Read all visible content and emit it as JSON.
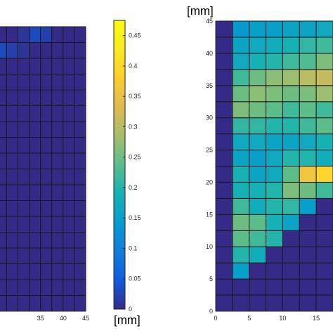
{
  "chart_data": [
    {
      "type": "heatmap",
      "title": "",
      "xlabel": "",
      "ylabel": "",
      "xlim": [
        22,
        45
      ],
      "ylim": [
        0,
        45
      ],
      "x_ticks": [
        35,
        40,
        45
      ],
      "x_tick_labels": [
        "35",
        "40",
        "45"
      ],
      "cell_size": 2.5,
      "grid": true,
      "x_start": 22.5,
      "y_start": 0,
      "values": [
        [
          0.0,
          0.0,
          0.0,
          0.0,
          0.0,
          0.0,
          0.0,
          0.0,
          0.0
        ],
        [
          0.0,
          0.0,
          0.0,
          0.0,
          0.0,
          0.0,
          0.0,
          0.0,
          0.0
        ],
        [
          0.0,
          0.0,
          0.0,
          0.0,
          0.0,
          0.0,
          0.0,
          0.0,
          0.0
        ],
        [
          0.0,
          0.0,
          0.0,
          0.0,
          0.0,
          0.0,
          0.0,
          0.0,
          0.0
        ],
        [
          0.0,
          0.0,
          0.0,
          0.0,
          0.0,
          0.0,
          0.0,
          0.0,
          0.0
        ],
        [
          0.0,
          0.0,
          0.0,
          0.0,
          0.0,
          0.0,
          0.0,
          0.0,
          0.0
        ],
        [
          0.0,
          0.0,
          0.0,
          0.0,
          0.0,
          0.0,
          0.0,
          0.0,
          0.0
        ],
        [
          0.0,
          0.0,
          0.0,
          0.0,
          0.0,
          0.0,
          0.0,
          0.0,
          0.0
        ],
        [
          0.0,
          0.0,
          0.0,
          0.0,
          0.0,
          0.0,
          0.0,
          0.0,
          0.0
        ],
        [
          0.0,
          0.0,
          0.0,
          0.0,
          0.0,
          0.0,
          0.0,
          0.0,
          0.0
        ],
        [
          0.0,
          0.0,
          0.0,
          0.0,
          0.0,
          0.0,
          0.0,
          0.0,
          0.0
        ],
        [
          0.0,
          0.0,
          0.0,
          0.0,
          0.0,
          0.0,
          0.0,
          0.0,
          0.0
        ],
        [
          0.0,
          0.0,
          0.0,
          0.0,
          0.0,
          0.0,
          0.0,
          0.0,
          0.0
        ],
        [
          0.0,
          0.0,
          0.0,
          0.0,
          0.0,
          0.0,
          0.0,
          0.0,
          0.0
        ],
        [
          0.0,
          0.0,
          0.0,
          0.0,
          0.0,
          0.0,
          0.0,
          0.0,
          0.0
        ],
        [
          0.02,
          0.0,
          0.0,
          0.0,
          0.0,
          0.0,
          0.0,
          0.0,
          0.0
        ],
        [
          0.01,
          0.03,
          0.02,
          0.01,
          0.0,
          0.0,
          0.0,
          0.0,
          0.0
        ],
        [
          0.0,
          0.0,
          0.0,
          0.01,
          0.03,
          0.02,
          0.0,
          0.0,
          0.0
        ],
        [
          0.0,
          0.0,
          0.0,
          0.0,
          0.02,
          0.05,
          0.06,
          0.01,
          0.0
        ]
      ]
    },
    {
      "type": "heatmap",
      "title": "",
      "xlabel": "",
      "ylabel": "[mm]",
      "xlim": [
        0,
        17.5
      ],
      "ylim": [
        0,
        45
      ],
      "x_ticks": [
        0,
        5,
        10,
        15
      ],
      "x_tick_labels": [
        "0",
        "5",
        "10",
        "15"
      ],
      "y_ticks": [
        0,
        5,
        10,
        15,
        20,
        25,
        30,
        35,
        40,
        45
      ],
      "y_tick_labels": [
        "0",
        "5",
        "10",
        "15",
        "20",
        "25",
        "30",
        "35",
        "40",
        "45"
      ],
      "cell_size": 2.5,
      "grid": true,
      "x_start": 0,
      "y_start": 0,
      "values": [
        [
          0.0,
          0.0,
          0.0,
          0.0,
          0.0,
          0.0,
          0.0
        ],
        [
          0.0,
          0.0,
          0.0,
          0.0,
          0.0,
          0.0,
          0.0
        ],
        [
          0.0,
          0.15,
          0.0,
          0.0,
          0.0,
          0.0,
          0.0
        ],
        [
          0.0,
          0.2,
          0.18,
          0.0,
          0.0,
          0.0,
          0.0
        ],
        [
          0.0,
          0.24,
          0.22,
          0.2,
          0.0,
          0.0,
          0.0
        ],
        [
          0.0,
          0.25,
          0.24,
          0.19,
          0.16,
          0.0,
          0.0
        ],
        [
          0.0,
          0.22,
          0.18,
          0.2,
          0.21,
          0.15,
          0.0
        ],
        [
          0.0,
          0.19,
          0.19,
          0.2,
          0.26,
          0.25,
          0.22
        ],
        [
          0.0,
          0.19,
          0.16,
          0.17,
          0.24,
          0.36,
          0.39
        ],
        [
          0.0,
          0.16,
          0.15,
          0.17,
          0.2,
          0.2,
          0.18
        ],
        [
          0.0,
          0.17,
          0.17,
          0.16,
          0.16,
          0.17,
          0.19
        ],
        [
          0.0,
          0.21,
          0.21,
          0.2,
          0.2,
          0.22,
          0.24
        ],
        [
          0.0,
          0.26,
          0.25,
          0.24,
          0.22,
          0.24,
          0.22
        ],
        [
          0.0,
          0.25,
          0.27,
          0.26,
          0.25,
          0.26,
          0.28
        ],
        [
          0.0,
          0.22,
          0.25,
          0.27,
          0.28,
          0.3,
          0.31
        ],
        [
          0.0,
          0.17,
          0.19,
          0.2,
          0.22,
          0.23,
          0.26
        ],
        [
          0.0,
          0.16,
          0.17,
          0.18,
          0.19,
          0.21,
          0.22
        ],
        [
          0.0,
          0.14,
          0.15,
          0.15,
          0.16,
          0.16,
          0.17
        ],
        [
          0.0,
          0.12,
          0.11,
          0.1,
          0.11,
          0.12,
          0.12
        ]
      ]
    }
  ],
  "colorbar": {
    "min": 0,
    "max": 0.475,
    "ticks": [
      "0",
      "0.05",
      "0.1",
      "0.15",
      "0.2",
      "0.25",
      "0.3",
      "0.35",
      "0.4",
      "0.45"
    ],
    "tick_values": [
      0,
      0.05,
      0.1,
      0.15,
      0.2,
      0.25,
      0.3,
      0.35,
      0.4,
      0.45
    ],
    "unit_label": "[mm]",
    "colormap": "parula"
  }
}
